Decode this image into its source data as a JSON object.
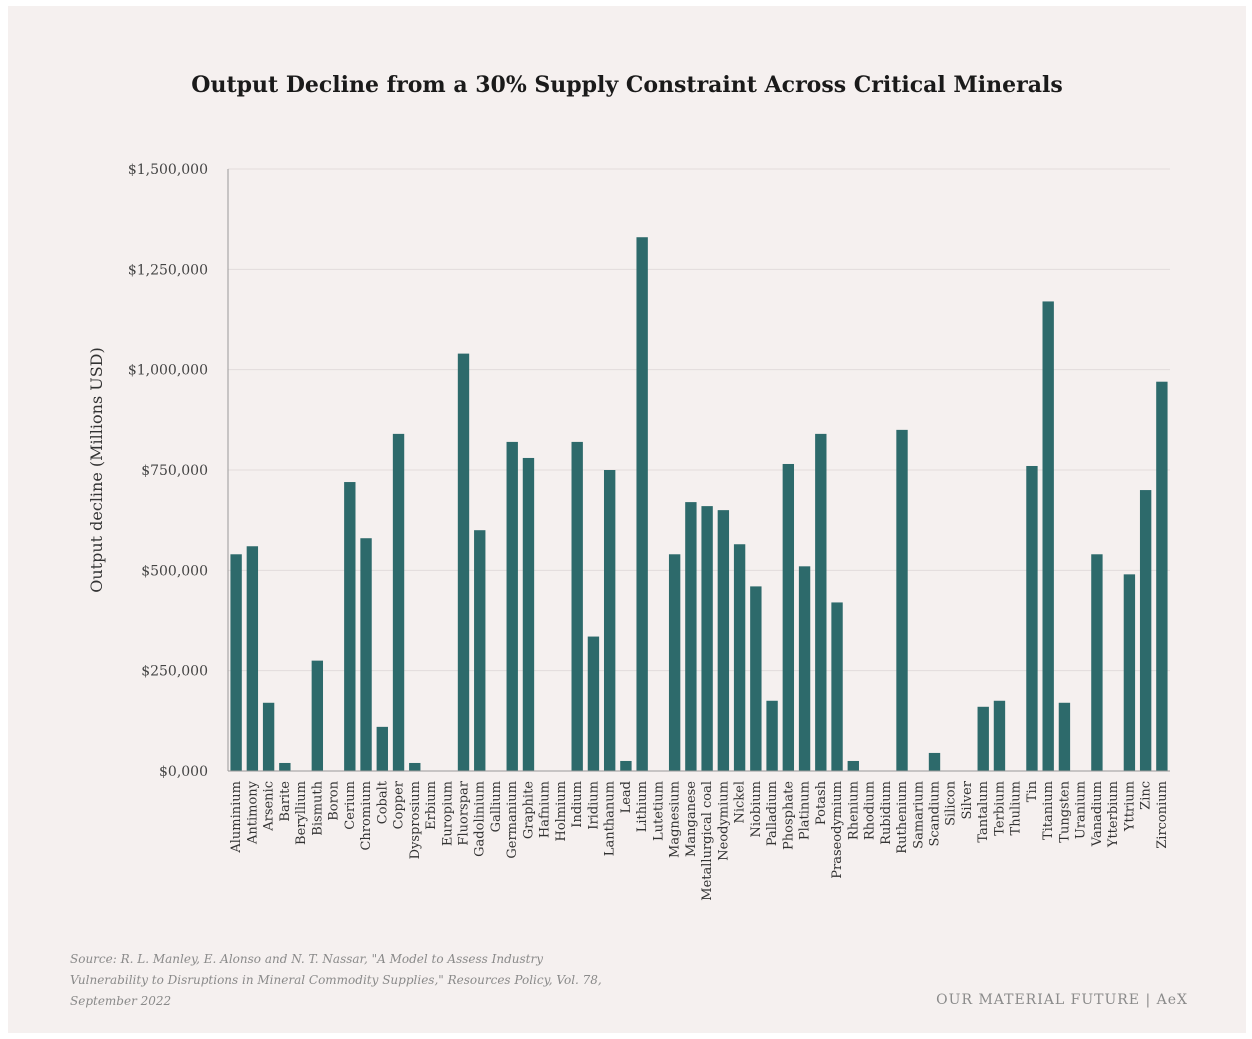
{
  "chart_data": {
    "type": "bar",
    "title": "Output Decline from a 30% Supply Constraint Across Critical Minerals",
    "ylabel": "Output decline (Millions USD)",
    "xlabel": "",
    "ylim": [
      0,
      1500000
    ],
    "yticks": [
      0,
      250000,
      500000,
      750000,
      1000000,
      1250000,
      1500000
    ],
    "ytick_labels": [
      "$0,000",
      "$250,000",
      "$500,000",
      "$750,000",
      "$1,000,000",
      "$1,250,000",
      "$1,500,000"
    ],
    "grid": true,
    "bar_color": "#2d6a6b",
    "categories": [
      "Aluminium",
      "Antimony",
      "Arsenic",
      "Barite",
      "Beryllium",
      "Bismuth",
      "Boron",
      "Cerium",
      "Chromium",
      "Cobalt",
      "Copper",
      "Dysprosium",
      "Erbium",
      "Europium",
      "Fluorspar",
      "Gadolinium",
      "Gallium",
      "Germanium",
      "Graphite",
      "Hafnium",
      "Holmium",
      "Indium",
      "Iridium",
      "Lanthanum",
      "Lead",
      "Lithium",
      "Lutetium",
      "Magnesium",
      "Manganese",
      "Metallurgical coal",
      "Neodymium",
      "Nickel",
      "Niobium",
      "Palladium",
      "Phosphate",
      "Platinum",
      "Potash",
      "Praseodymium",
      "Rhenium",
      "Rhodium",
      "Rubidium",
      "Ruthenium",
      "Samarium",
      "Scandium",
      "Silicon",
      "Silver",
      "Tantalum",
      "Terbium",
      "Thulium",
      "Tin",
      "Titanium",
      "Tungsten",
      "Uranium",
      "Vanadium",
      "Ytterbium",
      "Yttrium",
      "Zinc",
      "Zirconium"
    ],
    "values": [
      540000,
      560000,
      170000,
      20000,
      0,
      275000,
      0,
      720000,
      580000,
      110000,
      840000,
      20000,
      0,
      0,
      1040000,
      600000,
      0,
      820000,
      780000,
      0,
      0,
      820000,
      335000,
      750000,
      25000,
      1330000,
      0,
      540000,
      670000,
      660000,
      650000,
      565000,
      460000,
      175000,
      765000,
      510000,
      840000,
      420000,
      25000,
      0,
      0,
      850000,
      0,
      45000,
      0,
      0,
      160000,
      175000,
      0,
      760000,
      1170000,
      170000,
      0,
      540000,
      0,
      490000,
      700000,
      970000
    ]
  },
  "source": "Source: R. L. Manley, E. Alonso and N. T. Nassar, \"A Model to Assess Industry Vulnerability to Disruptions in Mineral Commodity Supplies,\" Resources Policy, Vol. 78, September 2022",
  "brand": "OUR MATERIAL FUTURE | AeX"
}
